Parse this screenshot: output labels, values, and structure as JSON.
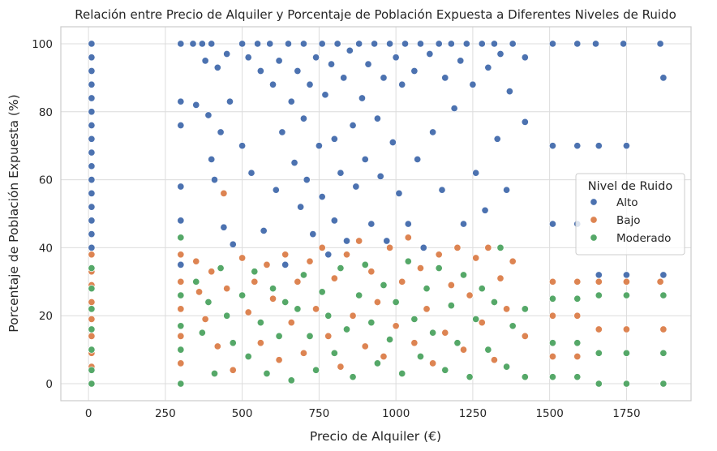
{
  "chart_data": {
    "type": "scatter",
    "title": "Relación entre Precio de Alquiler y Porcentaje de Población Expuesta a Diferentes Niveles de Ruido",
    "xlabel": "Precio de Alquiler (€)",
    "ylabel": "Porcentaje de Población Expuesta (%)",
    "xlim": [
      -90,
      1960
    ],
    "ylim": [
      -5,
      105
    ],
    "xticks": [
      0,
      250,
      500,
      750,
      1000,
      1250,
      1500,
      1750
    ],
    "yticks": [
      0,
      20,
      40,
      60,
      80,
      100
    ],
    "grid": true,
    "legend": {
      "title": "Nivel de Ruido",
      "placement": "center-right"
    },
    "series": [
      {
        "name": "Alto",
        "color": "#4c72b0",
        "points": [
          [
            10,
            100
          ],
          [
            10,
            96
          ],
          [
            10,
            92
          ],
          [
            10,
            88
          ],
          [
            10,
            84
          ],
          [
            10,
            80
          ],
          [
            10,
            76
          ],
          [
            10,
            72
          ],
          [
            10,
            68
          ],
          [
            10,
            64
          ],
          [
            10,
            60
          ],
          [
            10,
            56
          ],
          [
            10,
            52
          ],
          [
            10,
            48
          ],
          [
            10,
            44
          ],
          [
            10,
            40
          ],
          [
            300,
            100
          ],
          [
            300,
            83
          ],
          [
            300,
            76
          ],
          [
            300,
            58
          ],
          [
            300,
            48
          ],
          [
            300,
            35
          ],
          [
            340,
            100
          ],
          [
            350,
            82
          ],
          [
            370,
            100
          ],
          [
            380,
            95
          ],
          [
            390,
            79
          ],
          [
            400,
            100
          ],
          [
            400,
            66
          ],
          [
            410,
            60
          ],
          [
            420,
            93
          ],
          [
            430,
            74
          ],
          [
            440,
            46
          ],
          [
            450,
            97
          ],
          [
            460,
            83
          ],
          [
            470,
            41
          ],
          [
            500,
            100
          ],
          [
            500,
            70
          ],
          [
            520,
            96
          ],
          [
            530,
            62
          ],
          [
            550,
            100
          ],
          [
            560,
            92
          ],
          [
            570,
            45
          ],
          [
            590,
            100
          ],
          [
            600,
            88
          ],
          [
            610,
            57
          ],
          [
            620,
            95
          ],
          [
            630,
            74
          ],
          [
            640,
            35
          ],
          [
            650,
            100
          ],
          [
            660,
            83
          ],
          [
            670,
            65
          ],
          [
            680,
            92
          ],
          [
            690,
            52
          ],
          [
            700,
            100
          ],
          [
            700,
            78
          ],
          [
            710,
            60
          ],
          [
            720,
            88
          ],
          [
            730,
            44
          ],
          [
            740,
            96
          ],
          [
            750,
            70
          ],
          [
            760,
            100
          ],
          [
            760,
            55
          ],
          [
            770,
            85
          ],
          [
            780,
            38
          ],
          [
            790,
            94
          ],
          [
            800,
            72
          ],
          [
            800,
            48
          ],
          [
            810,
            100
          ],
          [
            820,
            62
          ],
          [
            830,
            90
          ],
          [
            840,
            42
          ],
          [
            850,
            98
          ],
          [
            860,
            76
          ],
          [
            870,
            58
          ],
          [
            880,
            100
          ],
          [
            890,
            84
          ],
          [
            900,
            66
          ],
          [
            910,
            94
          ],
          [
            920,
            47
          ],
          [
            930,
            100
          ],
          [
            940,
            78
          ],
          [
            950,
            61
          ],
          [
            960,
            90
          ],
          [
            970,
            42
          ],
          [
            980,
            100
          ],
          [
            990,
            71
          ],
          [
            1000,
            96
          ],
          [
            1010,
            56
          ],
          [
            1020,
            88
          ],
          [
            1030,
            100
          ],
          [
            1040,
            47
          ],
          [
            1060,
            92
          ],
          [
            1070,
            66
          ],
          [
            1080,
            100
          ],
          [
            1090,
            40
          ],
          [
            1110,
            97
          ],
          [
            1120,
            74
          ],
          [
            1140,
            100
          ],
          [
            1150,
            57
          ],
          [
            1160,
            90
          ],
          [
            1180,
            100
          ],
          [
            1190,
            81
          ],
          [
            1210,
            95
          ],
          [
            1220,
            47
          ],
          [
            1230,
            100
          ],
          [
            1250,
            88
          ],
          [
            1260,
            62
          ],
          [
            1280,
            100
          ],
          [
            1290,
            51
          ],
          [
            1300,
            93
          ],
          [
            1320,
            100
          ],
          [
            1330,
            72
          ],
          [
            1340,
            97
          ],
          [
            1360,
            57
          ],
          [
            1370,
            86
          ],
          [
            1380,
            100
          ],
          [
            1420,
            96
          ],
          [
            1420,
            77
          ],
          [
            1510,
            100
          ],
          [
            1510,
            70
          ],
          [
            1510,
            47
          ],
          [
            1590,
            100
          ],
          [
            1590,
            70
          ],
          [
            1590,
            47
          ],
          [
            1650,
            100
          ],
          [
            1660,
            70
          ],
          [
            1660,
            32
          ],
          [
            1740,
            100
          ],
          [
            1750,
            70
          ],
          [
            1750,
            32
          ],
          [
            1860,
            100
          ],
          [
            1870,
            90
          ],
          [
            1870,
            32
          ]
        ]
      },
      {
        "name": "Bajo",
        "color": "#dd8452",
        "points": [
          [
            10,
            38
          ],
          [
            10,
            33
          ],
          [
            10,
            29
          ],
          [
            10,
            24
          ],
          [
            10,
            19
          ],
          [
            10,
            14
          ],
          [
            10,
            9
          ],
          [
            10,
            5
          ],
          [
            300,
            38
          ],
          [
            300,
            30
          ],
          [
            300,
            22
          ],
          [
            300,
            14
          ],
          [
            300,
            6
          ],
          [
            350,
            36
          ],
          [
            360,
            27
          ],
          [
            380,
            19
          ],
          [
            400,
            33
          ],
          [
            420,
            11
          ],
          [
            440,
            56
          ],
          [
            450,
            28
          ],
          [
            470,
            4
          ],
          [
            500,
            37
          ],
          [
            520,
            21
          ],
          [
            540,
            30
          ],
          [
            560,
            12
          ],
          [
            580,
            35
          ],
          [
            600,
            25
          ],
          [
            620,
            7
          ],
          [
            640,
            38
          ],
          [
            660,
            18
          ],
          [
            680,
            30
          ],
          [
            700,
            9
          ],
          [
            720,
            36
          ],
          [
            740,
            22
          ],
          [
            760,
            40
          ],
          [
            780,
            14
          ],
          [
            800,
            31
          ],
          [
            820,
            5
          ],
          [
            840,
            38
          ],
          [
            860,
            20
          ],
          [
            880,
            42
          ],
          [
            900,
            11
          ],
          [
            920,
            33
          ],
          [
            940,
            24
          ],
          [
            960,
            8
          ],
          [
            980,
            40
          ],
          [
            1000,
            17
          ],
          [
            1020,
            30
          ],
          [
            1040,
            43
          ],
          [
            1060,
            12
          ],
          [
            1080,
            34
          ],
          [
            1100,
            22
          ],
          [
            1120,
            6
          ],
          [
            1140,
            38
          ],
          [
            1160,
            15
          ],
          [
            1180,
            29
          ],
          [
            1200,
            40
          ],
          [
            1220,
            10
          ],
          [
            1240,
            26
          ],
          [
            1260,
            37
          ],
          [
            1280,
            18
          ],
          [
            1300,
            40
          ],
          [
            1320,
            7
          ],
          [
            1340,
            31
          ],
          [
            1360,
            22
          ],
          [
            1380,
            36
          ],
          [
            1420,
            14
          ],
          [
            1510,
            30
          ],
          [
            1510,
            20
          ],
          [
            1510,
            8
          ],
          [
            1590,
            30
          ],
          [
            1590,
            20
          ],
          [
            1590,
            8
          ],
          [
            1660,
            30
          ],
          [
            1660,
            16
          ],
          [
            1750,
            30
          ],
          [
            1750,
            16
          ],
          [
            1860,
            30
          ],
          [
            1870,
            16
          ]
        ]
      },
      {
        "name": "Moderado",
        "color": "#55a868",
        "points": [
          [
            10,
            34
          ],
          [
            10,
            28
          ],
          [
            10,
            22
          ],
          [
            10,
            16
          ],
          [
            10,
            10
          ],
          [
            10,
            4
          ],
          [
            10,
            0
          ],
          [
            300,
            43
          ],
          [
            300,
            26
          ],
          [
            300,
            17
          ],
          [
            300,
            10
          ],
          [
            300,
            0
          ],
          [
            350,
            30
          ],
          [
            370,
            15
          ],
          [
            390,
            24
          ],
          [
            410,
            3
          ],
          [
            430,
            34
          ],
          [
            450,
            20
          ],
          [
            470,
            12
          ],
          [
            500,
            26
          ],
          [
            520,
            8
          ],
          [
            540,
            33
          ],
          [
            560,
            18
          ],
          [
            580,
            3
          ],
          [
            600,
            28
          ],
          [
            620,
            14
          ],
          [
            640,
            24
          ],
          [
            660,
            1
          ],
          [
            680,
            22
          ],
          [
            700,
            32
          ],
          [
            720,
            14
          ],
          [
            740,
            4
          ],
          [
            760,
            27
          ],
          [
            780,
            20
          ],
          [
            800,
            9
          ],
          [
            820,
            34
          ],
          [
            840,
            16
          ],
          [
            860,
            2
          ],
          [
            880,
            26
          ],
          [
            900,
            35
          ],
          [
            920,
            18
          ],
          [
            940,
            6
          ],
          [
            960,
            29
          ],
          [
            980,
            13
          ],
          [
            1000,
            24
          ],
          [
            1020,
            3
          ],
          [
            1040,
            36
          ],
          [
            1060,
            19
          ],
          [
            1080,
            8
          ],
          [
            1100,
            28
          ],
          [
            1120,
            15
          ],
          [
            1140,
            34
          ],
          [
            1160,
            4
          ],
          [
            1180,
            23
          ],
          [
            1200,
            12
          ],
          [
            1220,
            32
          ],
          [
            1240,
            2
          ],
          [
            1260,
            19
          ],
          [
            1280,
            28
          ],
          [
            1300,
            10
          ],
          [
            1320,
            24
          ],
          [
            1340,
            40
          ],
          [
            1360,
            5
          ],
          [
            1380,
            17
          ],
          [
            1420,
            22
          ],
          [
            1420,
            2
          ],
          [
            1510,
            25
          ],
          [
            1510,
            12
          ],
          [
            1510,
            2
          ],
          [
            1590,
            25
          ],
          [
            1590,
            12
          ],
          [
            1590,
            2
          ],
          [
            1660,
            26
          ],
          [
            1660,
            9
          ],
          [
            1660,
            0
          ],
          [
            1750,
            26
          ],
          [
            1750,
            9
          ],
          [
            1750,
            0
          ],
          [
            1870,
            26
          ],
          [
            1870,
            9
          ],
          [
            1870,
            0
          ]
        ]
      }
    ]
  }
}
